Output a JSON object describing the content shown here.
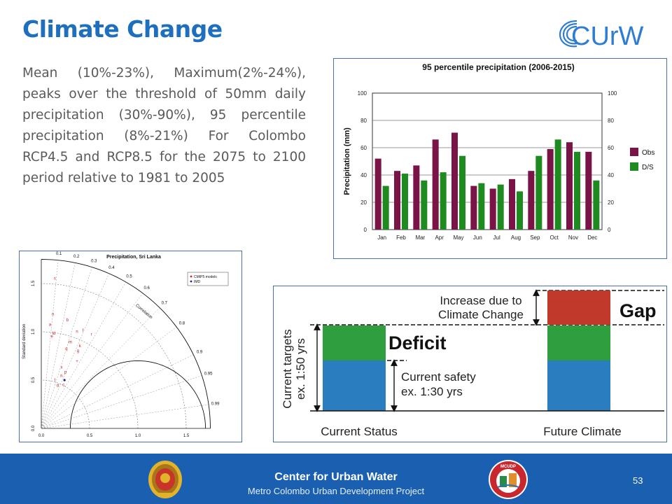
{
  "slide": {
    "title": "Climate Change",
    "logo_text": "CUrW",
    "body": "Mean (10%-23%), Maximum(2%-24%), peaks over the threshold of 50mm daily precipitation (30%-90%), 95 percentile precipitation (8%-21%) For Colombo RCP4.5 and RCP8.5 for the 2075 to 2100 period relative to 1981 to 2005",
    "page_number": "53"
  },
  "footer": {
    "title": "Center for Urban Water",
    "subtitle": "Metro Colombo Urban Development Project",
    "color": "#1a5fb0",
    "badge_text": "MCUDP"
  },
  "chart_data": [
    {
      "type": "bar",
      "title": "95 percentile precipitation (2006-2015)",
      "xlabel": "",
      "ylabel": "Precipitation (mm)",
      "ylim": [
        0,
        100
      ],
      "yticks": [
        "0",
        "20",
        "40",
        "60",
        "80",
        "100"
      ],
      "grid": true,
      "legend_position": "right",
      "categories": [
        "Jan",
        "Feb",
        "Mar",
        "Apr",
        "May",
        "Jun",
        "Jul",
        "Aug",
        "Sep",
        "Oct",
        "Nov",
        "Dec"
      ],
      "series": [
        {
          "name": "Obs",
          "color": "#7a1446",
          "values": [
            52,
            43,
            47,
            66,
            71,
            32,
            30,
            37,
            43,
            59,
            64,
            57
          ]
        },
        {
          "name": "D/S",
          "color": "#1f8a1f",
          "values": [
            32,
            41,
            36,
            42,
            54,
            34,
            33,
            28,
            54,
            66,
            57,
            36
          ]
        }
      ]
    },
    {
      "type": "scatter",
      "title": "Precipitation, Sri Lanka",
      "xlabel": "",
      "ylabel": "Standard deviation",
      "x_ticks": [
        "0.0",
        "0.5",
        "1.0",
        "1.5"
      ],
      "y_ticks": [
        "0.0",
        "0.5",
        "1.0",
        "1.5"
      ],
      "correlation_label": "Correlation",
      "correlation_ticks": [
        "0.1",
        "0.2",
        "0.3",
        "0.4",
        "0.5",
        "0.6",
        "0.7",
        "0.8",
        "0.9",
        "0.95",
        "0.99"
      ],
      "legend_position": "top-right",
      "legend": [
        {
          "name": "CMIP5 models",
          "color": "#cc2222"
        },
        {
          "name": "IMD",
          "color": "#222288"
        }
      ],
      "point_labels": [
        "s",
        "o",
        "b",
        "n",
        "f",
        "a",
        "r",
        "e",
        "m",
        "g",
        "q",
        "k",
        "x",
        "p",
        "h",
        "t",
        "d",
        "c",
        "+",
        "ld"
      ]
    }
  ],
  "gap_diagram": {
    "increase_label": "Increase due to Climate Change",
    "gap_label": "Gap",
    "deficit_label": "Deficit",
    "current_safety_label": "Current safety ex. 1:30 yrs",
    "current_targets_label": "Current targets ex. 1:50 yrs",
    "current_status_label": "Current Status",
    "future_climate_label": "Future Climate",
    "colors": {
      "gap": "#c0392b",
      "deficit": "#2e9e3e",
      "safety": "#2a7ec0"
    }
  }
}
